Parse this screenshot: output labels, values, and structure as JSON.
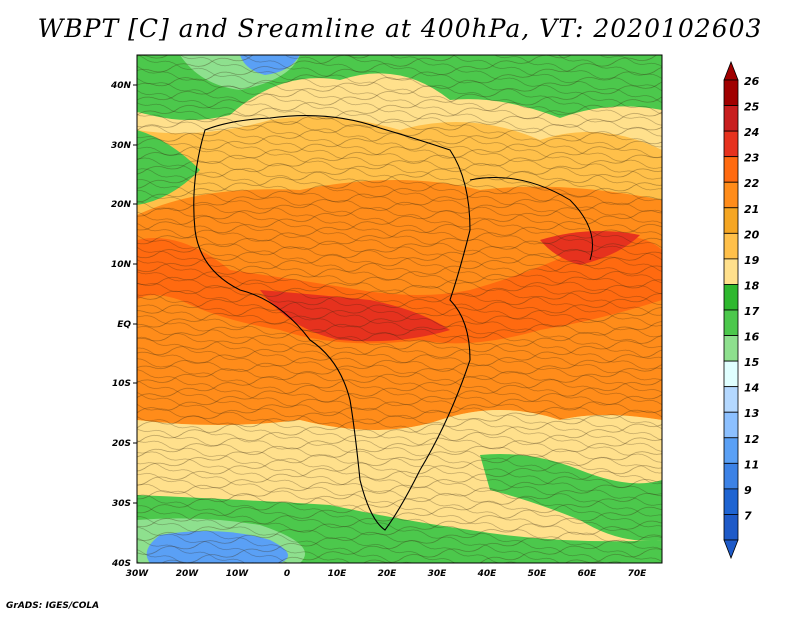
{
  "title": "WBPT [C] and Sreamline at 400hPa, VT: 2020102603",
  "footer": "GrADS: IGES/COLA",
  "map": {
    "lat_labels": [
      "40N",
      "30N",
      "20N",
      "10N",
      "EQ",
      "10S",
      "20S",
      "30S",
      "40S"
    ],
    "lon_labels": [
      "30W",
      "20W",
      "10W",
      "0",
      "10E",
      "20E",
      "30E",
      "40E",
      "50E",
      "60E",
      "70E"
    ],
    "lat_range": [
      -40,
      45
    ],
    "lon_range": [
      -30,
      75
    ]
  },
  "colorbar": {
    "labels": [
      "26",
      "25",
      "24",
      "23",
      "22",
      "21",
      "20",
      "19",
      "18",
      "17",
      "16",
      "15",
      "14",
      "13",
      "12",
      "11",
      "9",
      "7"
    ],
    "colors": [
      "#a00000",
      "#c81e1e",
      "#e6321e",
      "#ff6a10",
      "#ff8c1a",
      "#f5a623",
      "#ffc04a",
      "#ffe08c",
      "#2eb82e",
      "#4cc84c",
      "#8ee08e",
      "#e0ffff",
      "#b4d8ff",
      "#8cc0ff",
      "#5aa0f5",
      "#3c82e6",
      "#1e64d2",
      "#1e5ac8"
    ]
  }
}
